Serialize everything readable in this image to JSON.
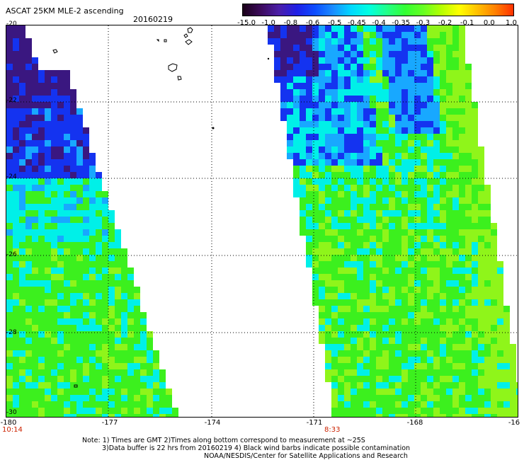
{
  "header": {
    "title": "ASCAT 25KM MLE-2 ascending",
    "date": "20160219"
  },
  "colorbar": {
    "labels": [
      "-15.0",
      "-1.0",
      "-0.8",
      "-0.6",
      "-0.5",
      "-0.45",
      "-0.4",
      "-0.35",
      "-0.3",
      "-0.2",
      "-0.1",
      "0.0",
      "1.0"
    ],
    "colors": [
      "#1a0018",
      "#3c0a5c",
      "#4b1ea8",
      "#1f1fe6",
      "#0d4dff",
      "#1a8cff",
      "#00d8ff",
      "#00ffe0",
      "#22ff88",
      "#33ff33",
      "#66ff22",
      "#b4ff00",
      "#ffff00",
      "#ffc000",
      "#ff8000",
      "#ff3000"
    ]
  },
  "map": {
    "y_labels": [
      "-20",
      "-22",
      "-24",
      "-26",
      "-28",
      "-30"
    ],
    "x_labels": [
      "-180",
      "-177",
      "-174",
      "-171",
      "-168",
      "-16"
    ],
    "times": [
      "10:14",
      "8:33"
    ],
    "colors": {
      "swath_green": "#3cf01e",
      "swath_lime": "#8ff51a",
      "swath_cyan": "#00f0e8",
      "swath_blue": "#1433f0",
      "swath_purple": "#3a1780",
      "swath_sky": "#18a8ff",
      "grid": "#000000"
    }
  },
  "notes": {
    "line1": "Note: 1) Times are GMT 2)Times along bottom correspond to measurement at ~25S",
    "line2": "3)Data buffer is 22 hrs from 20160219 4) Black wind barbs indicate possible contamination",
    "line3": "NOAA/NESDIS/Center for Satellite Applications and Research"
  }
}
